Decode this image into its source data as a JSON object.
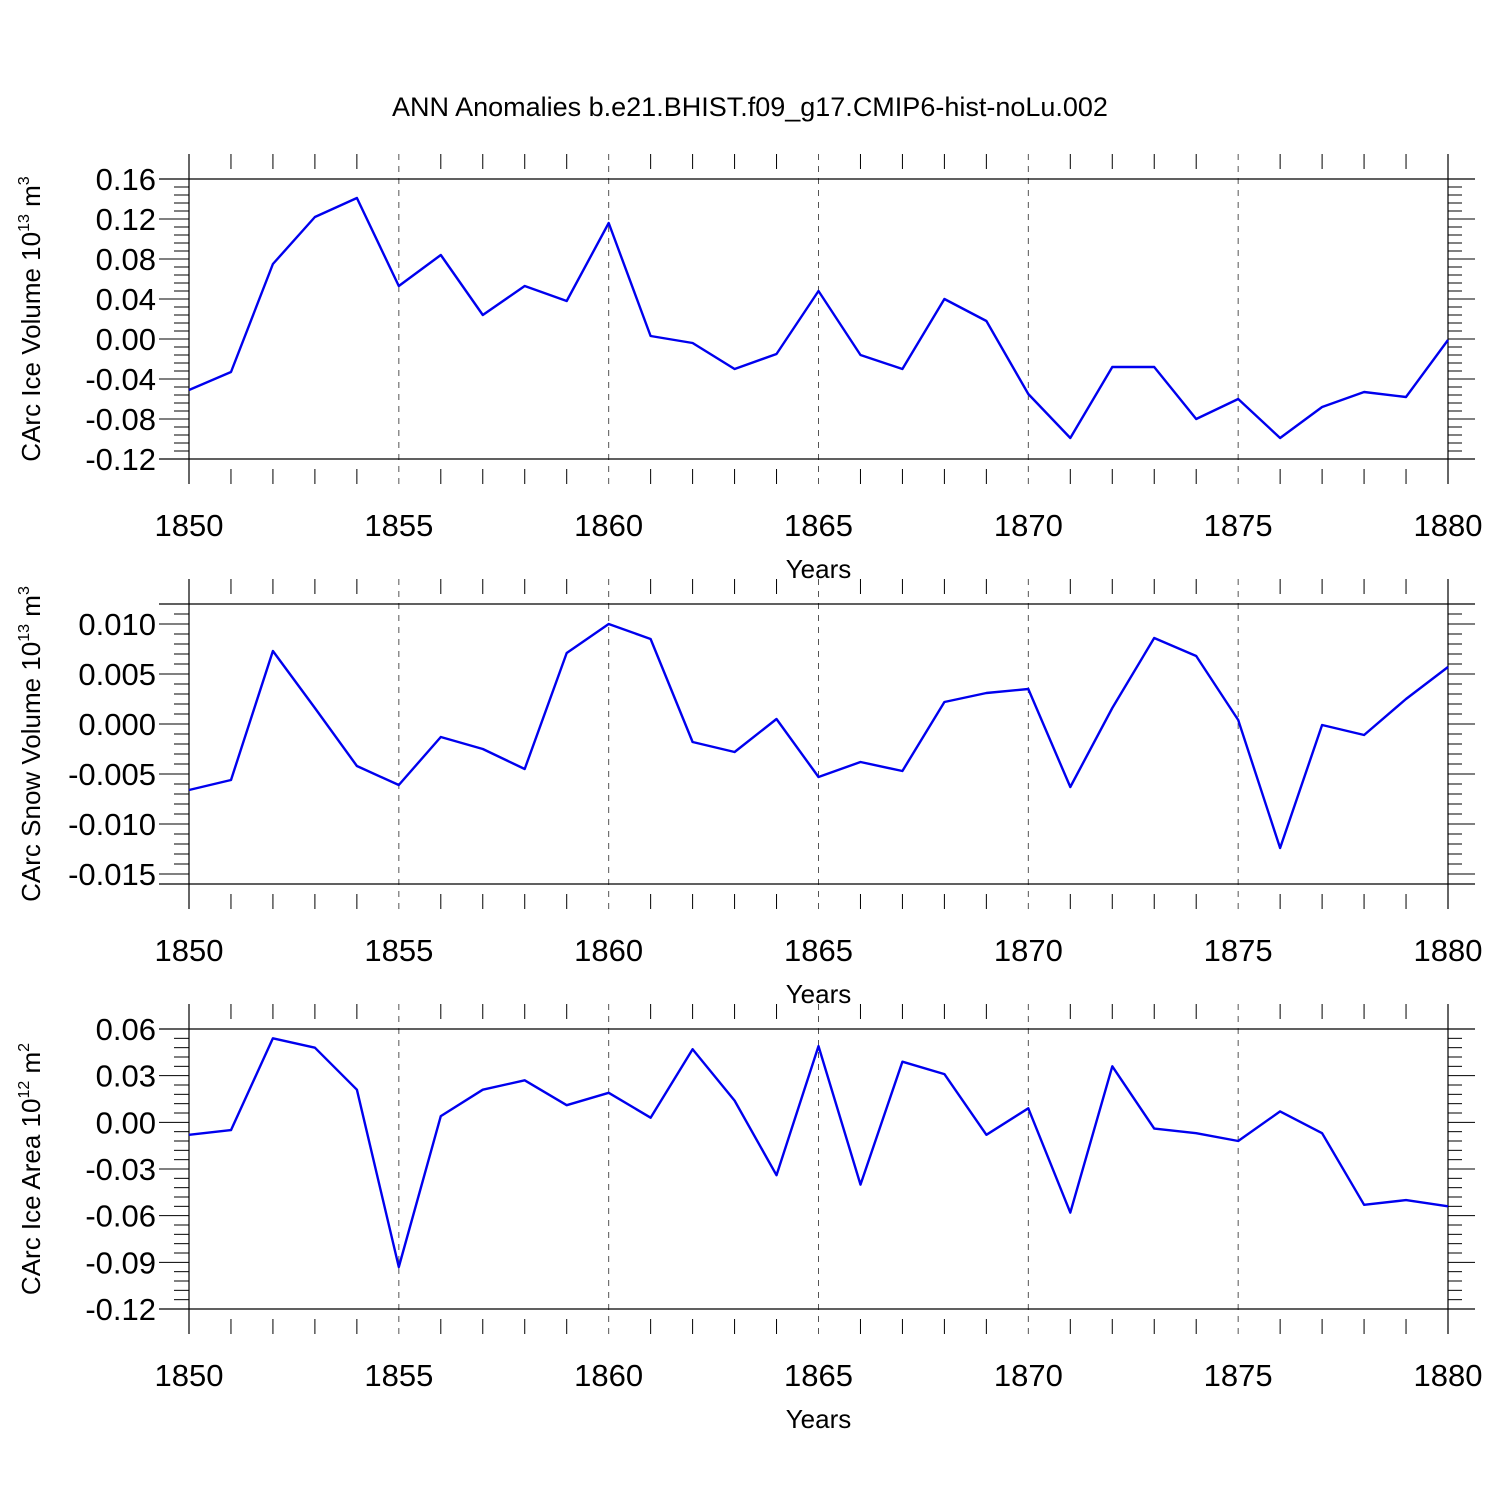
{
  "title": "ANN Anomalies b.e21.BHIST.f09_g17.CMIP6-hist-noLu.002",
  "line_color": "#0000ee",
  "chart_data": [
    {
      "type": "line",
      "ylabel": "CArc Ice Volume 10",
      "ylabel_exp": "13",
      "ylabel_unit": " m",
      "ylabel_unit_exp": "3",
      "xlabel": "Years",
      "xlim": [
        1850,
        1880
      ],
      "ylim": [
        -0.12,
        0.16
      ],
      "xticks": [
        "1850",
        "1855",
        "1860",
        "1865",
        "1870",
        "1875",
        "1880"
      ],
      "yticks": [
        "0.16",
        "0.12",
        "0.08",
        "0.04",
        "0.00",
        "-0.04",
        "-0.08",
        "-0.12"
      ],
      "x": [
        1850,
        1851,
        1852,
        1853,
        1854,
        1855,
        1856,
        1857,
        1858,
        1859,
        1860,
        1861,
        1862,
        1863,
        1864,
        1865,
        1866,
        1867,
        1868,
        1869,
        1870,
        1871,
        1872,
        1873,
        1874,
        1875,
        1876,
        1877,
        1878,
        1879,
        1880
      ],
      "values": [
        -0.051,
        -0.033,
        0.075,
        0.122,
        0.141,
        0.053,
        0.084,
        0.024,
        0.053,
        0.038,
        0.116,
        0.003,
        -0.004,
        -0.03,
        -0.015,
        0.048,
        -0.016,
        -0.03,
        0.04,
        0.018,
        -0.055,
        -0.099,
        -0.028,
        -0.028,
        -0.08,
        -0.06,
        -0.099,
        -0.068,
        -0.053,
        -0.058,
        -0.001
      ]
    },
    {
      "type": "line",
      "ylabel": "CArc Snow Volume 10",
      "ylabel_exp": "13",
      "ylabel_unit": " m",
      "ylabel_unit_exp": "3",
      "xlabel": "Years",
      "xlim": [
        1850,
        1880
      ],
      "ylim": [
        -0.016,
        0.012
      ],
      "xticks": [
        "1850",
        "1855",
        "1860",
        "1865",
        "1870",
        "1875",
        "1880"
      ],
      "yticks": [
        "0.010",
        "0.005",
        "0.000",
        "-0.005",
        "-0.010",
        "-0.015"
      ],
      "x": [
        1850,
        1851,
        1852,
        1853,
        1854,
        1855,
        1856,
        1857,
        1858,
        1859,
        1860,
        1861,
        1862,
        1863,
        1864,
        1865,
        1866,
        1867,
        1868,
        1869,
        1870,
        1871,
        1872,
        1873,
        1874,
        1875,
        1876,
        1877,
        1878,
        1879,
        1880
      ],
      "values": [
        -0.0066,
        -0.0056,
        0.0073,
        0.0016,
        -0.0042,
        -0.0061,
        -0.0013,
        -0.0025,
        -0.0045,
        0.0071,
        0.01,
        0.0085,
        -0.0018,
        -0.0028,
        0.0005,
        -0.0053,
        -0.0038,
        -0.0047,
        0.0022,
        0.0031,
        0.0035,
        -0.0063,
        0.0016,
        0.0086,
        0.0068,
        0.0004,
        -0.0124,
        -0.0001,
        -0.0011,
        0.0025,
        0.0057
      ]
    },
    {
      "type": "line",
      "ylabel": "CArc Ice Area 10",
      "ylabel_exp": "12",
      "ylabel_unit": " m",
      "ylabel_unit_exp": "2",
      "xlabel": "Years",
      "xlim": [
        1850,
        1880
      ],
      "ylim": [
        -0.12,
        0.06
      ],
      "xticks": [
        "1850",
        "1855",
        "1860",
        "1865",
        "1870",
        "1875",
        "1880"
      ],
      "yticks": [
        "0.06",
        "0.03",
        "0.00",
        "-0.03",
        "-0.06",
        "-0.09",
        "-0.12"
      ],
      "x": [
        1850,
        1851,
        1852,
        1853,
        1854,
        1855,
        1856,
        1857,
        1858,
        1859,
        1860,
        1861,
        1862,
        1863,
        1864,
        1865,
        1866,
        1867,
        1868,
        1869,
        1870,
        1871,
        1872,
        1873,
        1874,
        1875,
        1876,
        1877,
        1878,
        1879,
        1880
      ],
      "values": [
        -0.008,
        -0.005,
        0.054,
        0.048,
        0.021,
        -0.093,
        0.004,
        0.021,
        0.027,
        0.011,
        0.019,
        0.003,
        0.047,
        0.014,
        -0.034,
        0.049,
        -0.04,
        0.039,
        0.031,
        -0.008,
        0.009,
        -0.058,
        0.036,
        -0.004,
        -0.007,
        -0.012,
        0.007,
        -0.007,
        -0.053,
        -0.05,
        -0.054
      ]
    }
  ]
}
